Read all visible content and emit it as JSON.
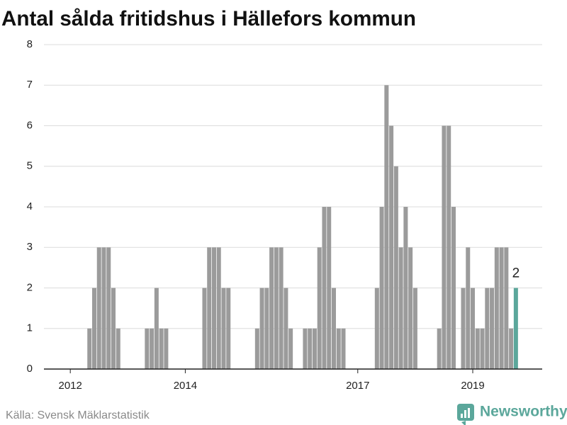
{
  "chart_data": {
    "type": "bar",
    "title": "Antal sålda fritidshus i Hällefors kommun",
    "source": "Källa: Svensk Mäklarstatistik",
    "brand": "Newsworthy",
    "categories": [
      null,
      null,
      null,
      null,
      null,
      "2012",
      null,
      null,
      null,
      null,
      null,
      null,
      null,
      null,
      null,
      null,
      null,
      null,
      null,
      null,
      null,
      null,
      null,
      null,
      null,
      null,
      null,
      null,
      null,
      "2014",
      null,
      null,
      null,
      null,
      null,
      null,
      null,
      null,
      null,
      null,
      null,
      null,
      null,
      null,
      null,
      null,
      null,
      null,
      null,
      null,
      null,
      null,
      null,
      null,
      null,
      null,
      null,
      null,
      null,
      null,
      null,
      null,
      null,
      null,
      null,
      "2017",
      null,
      null,
      null,
      null,
      null,
      null,
      null,
      null,
      null,
      null,
      null,
      null,
      null,
      null,
      null,
      null,
      null,
      null,
      null,
      null,
      null,
      null,
      null,
      "2019",
      null,
      null,
      null,
      null,
      null,
      null,
      null,
      null,
      null
    ],
    "values": [
      0,
      0,
      0,
      0,
      0,
      0,
      0,
      0,
      0,
      1,
      2,
      3,
      3,
      3,
      2,
      1,
      0,
      0,
      0,
      0,
      0,
      1,
      1,
      2,
      1,
      1,
      0,
      0,
      0,
      0,
      0,
      0,
      0,
      2,
      3,
      3,
      3,
      2,
      2,
      0,
      0,
      0,
      0,
      0,
      1,
      2,
      2,
      3,
      3,
      3,
      2,
      1,
      0,
      0,
      1,
      1,
      1,
      3,
      4,
      4,
      2,
      1,
      1,
      0,
      0,
      0,
      0,
      0,
      0,
      2,
      4,
      7,
      6,
      5,
      3,
      4,
      3,
      2,
      0,
      0,
      0,
      0,
      1,
      6,
      6,
      4,
      0,
      2,
      3,
      2,
      1,
      1,
      2,
      2,
      3,
      3,
      3,
      1,
      2
    ],
    "color": "#9b9b9b",
    "last_color": "#5ba79b",
    "ylim": [
      0,
      8
    ],
    "yticks": [
      0,
      1,
      2,
      3,
      4,
      5,
      6,
      7,
      8
    ],
    "grid": true
  }
}
